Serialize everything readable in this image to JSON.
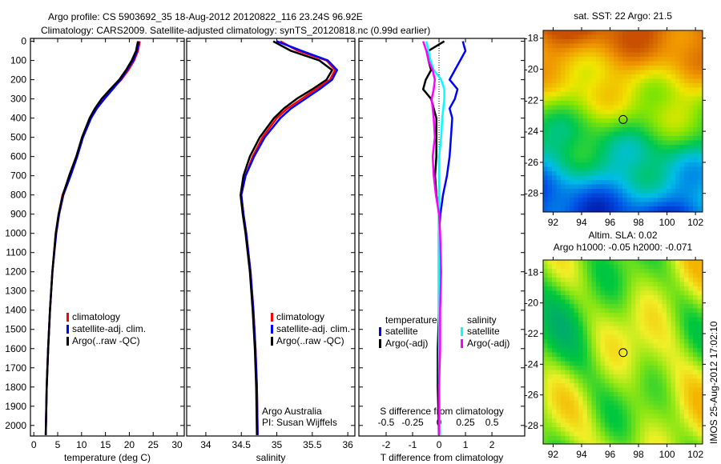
{
  "title": {
    "line1": "Argo profile: CS 5903692_35 18-Aug-2012 20120822_116 23.24S 96.92E",
    "line2": "Climatology: CARS2009. Satellite-adjusted climatology: synTS_20120818.nc (0.99d earlier)"
  },
  "credit": "IMOS 25-Aug-2012 17:02:10",
  "chart_data": [
    {
      "type": "line",
      "id": "temperature",
      "xlabel": "temperature (deg C)",
      "xlim": [
        -0.7,
        31.5
      ],
      "ylim": [
        -15,
        2055
      ],
      "xticks": [
        0,
        5,
        10,
        15,
        20,
        25,
        30
      ],
      "yticks": [
        0,
        100,
        200,
        300,
        400,
        500,
        600,
        700,
        800,
        900,
        1000,
        1100,
        1200,
        1300,
        1400,
        1500,
        1600,
        1700,
        1800,
        1900,
        2000
      ],
      "depth": [
        0,
        50,
        100,
        150,
        200,
        250,
        300,
        350,
        400,
        500,
        600,
        700,
        800,
        900,
        1000,
        1200,
        1400,
        1600,
        1800,
        2050
      ],
      "series": [
        {
          "name": "climatology",
          "color": "#ff0000",
          "values": [
            22.2,
            21.8,
            21,
            19.8,
            18.3,
            16.3,
            14.5,
            13,
            11.8,
            10.2,
            9,
            7.6,
            6,
            5.2,
            4.6,
            3.9,
            3.4,
            3,
            2.7,
            2.5
          ]
        },
        {
          "name": "satellite-adj. clim.",
          "color": "#0000ff",
          "values": [
            22,
            21.6,
            20.8,
            19.5,
            18.2,
            16.5,
            14.8,
            13.2,
            12,
            10.3,
            9.1,
            7.7,
            6.2,
            5.3,
            4.7,
            3.9,
            3.4,
            3,
            2.7,
            2.5
          ]
        },
        {
          "name": "Argo(..raw -QC)",
          "color": "#000000",
          "values": [
            21.8,
            21.4,
            20.5,
            19.3,
            17.9,
            16,
            14.2,
            12.8,
            11.7,
            10.1,
            8.9,
            7.4,
            6.1,
            5.2,
            4.6,
            3.9,
            3.4,
            3,
            2.7,
            2.5
          ]
        }
      ]
    },
    {
      "type": "line",
      "id": "salinity",
      "xlabel": "salinity",
      "xlim": [
        33.73,
        36.1
      ],
      "ylim": [
        -15,
        2055
      ],
      "xticks": [
        34,
        34.5,
        35,
        35.5,
        36
      ],
      "depth": [
        0,
        50,
        100,
        150,
        200,
        250,
        300,
        350,
        400,
        500,
        600,
        700,
        800,
        900,
        1000,
        1200,
        1400,
        1600,
        1800,
        2050
      ],
      "series": [
        {
          "name": "climatology",
          "color": "#ff0000",
          "values": [
            35.05,
            35.3,
            35.7,
            35.82,
            35.75,
            35.55,
            35.35,
            35.15,
            35.0,
            34.8,
            34.66,
            34.56,
            34.5,
            34.53,
            34.57,
            34.63,
            34.67,
            34.7,
            34.72,
            34.73
          ]
        },
        {
          "name": "satellite-adj. clim.",
          "color": "#0000ff",
          "values": [
            35.0,
            35.35,
            35.72,
            35.85,
            35.78,
            35.6,
            35.4,
            35.2,
            35.05,
            34.83,
            34.68,
            34.56,
            34.5,
            34.53,
            34.57,
            34.63,
            34.67,
            34.7,
            34.72,
            34.73
          ]
        },
        {
          "name": "Argo(..raw -QC)",
          "color": "#000000",
          "values": [
            34.95,
            35.2,
            35.6,
            35.78,
            35.7,
            35.5,
            35.28,
            35.1,
            34.96,
            34.76,
            34.62,
            34.53,
            34.49,
            34.52,
            34.56,
            34.62,
            34.66,
            34.69,
            34.71,
            34.72
          ]
        }
      ],
      "annotation": [
        "Argo Australia",
        "PI: Susan Wijffels"
      ]
    },
    {
      "type": "line",
      "id": "difference",
      "xlabel": "T difference from climatology",
      "xlabel2": "S difference from climatology",
      "xlim": [
        -3.03,
        3.24
      ],
      "ylim": [
        -15,
        2055
      ],
      "xticks": [
        -2,
        -1,
        0,
        1,
        2
      ],
      "xticks2": [
        -0.5,
        -0.25,
        0,
        0.25,
        0.5
      ],
      "legend_headers": [
        "temperature",
        "salinity"
      ],
      "depth": [
        0,
        50,
        100,
        150,
        200,
        250,
        300,
        350,
        400,
        500,
        600,
        700,
        800,
        900,
        1000,
        1200,
        1400,
        1600,
        1800,
        2050
      ],
      "series": [
        {
          "name": "satellite",
          "group": "temperature",
          "axis": "T",
          "color": "#0000ff",
          "values": [
            0.9,
            1.0,
            0.8,
            0.6,
            0.4,
            0.7,
            0.6,
            0.4,
            0.5,
            0.45,
            0.4,
            0.3,
            0.15,
            0.05,
            0,
            0,
            0,
            0,
            0,
            0
          ]
        },
        {
          "name": "Argo(-adj)",
          "group": "temperature",
          "axis": "T",
          "color": "#000000",
          "values": [
            0.2,
            -0.4,
            -0.4,
            -0.3,
            -0.5,
            -0.6,
            -0.3,
            -0.2,
            -0.1,
            -0.1,
            -0.1,
            -0.15,
            -0.1,
            0,
            0,
            0,
            0,
            -0.05,
            -0.05,
            0
          ]
        },
        {
          "name": "satellite",
          "group": "salinity",
          "axis": "S",
          "color": "#00ffff",
          "values": [
            -0.12,
            -0.1,
            -0.08,
            -0.05,
            0.02,
            0.05,
            0.05,
            0.04,
            0.03,
            0.02,
            0,
            0,
            0,
            0,
            0,
            0,
            0,
            0,
            0,
            0.01
          ]
        },
        {
          "name": "Argo(-adj)",
          "group": "salinity",
          "axis": "S",
          "color": "#ff00ff",
          "values": [
            -0.15,
            -0.12,
            -0.1,
            -0.06,
            -0.04,
            -0.05,
            -0.07,
            -0.06,
            -0.05,
            -0.04,
            -0.06,
            -0.05,
            -0.03,
            0,
            0.01,
            0.02,
            0.01,
            0.01,
            0,
            0
          ]
        }
      ]
    },
    {
      "type": "heatmap",
      "id": "sst-map",
      "title": [
        "sat. SST: 22 Argo: 21.5"
      ],
      "xlim": [
        91.3,
        102.5
      ],
      "ylim": [
        -17.5,
        -29.2
      ],
      "xticks": [
        92,
        94,
        96,
        98,
        100,
        102
      ],
      "yticks": [
        -18,
        -20,
        -22,
        -24,
        -26,
        -28
      ],
      "marker": {
        "lon": 96.92,
        "lat": -23.24
      }
    },
    {
      "type": "heatmap",
      "id": "sla-map",
      "title": [
        "Altim. SLA: 0.02",
        "Argo h1000: -0.05 h2000: -0.071"
      ],
      "xlim": [
        91.3,
        102.5
      ],
      "ylim": [
        -17.2,
        -29.2
      ],
      "xticks": [
        92,
        94,
        96,
        98,
        100,
        102
      ],
      "yticks": [
        -18,
        -20,
        -22,
        -24,
        -26,
        -28
      ],
      "marker": {
        "lon": 96.92,
        "lat": -23.24
      }
    }
  ]
}
